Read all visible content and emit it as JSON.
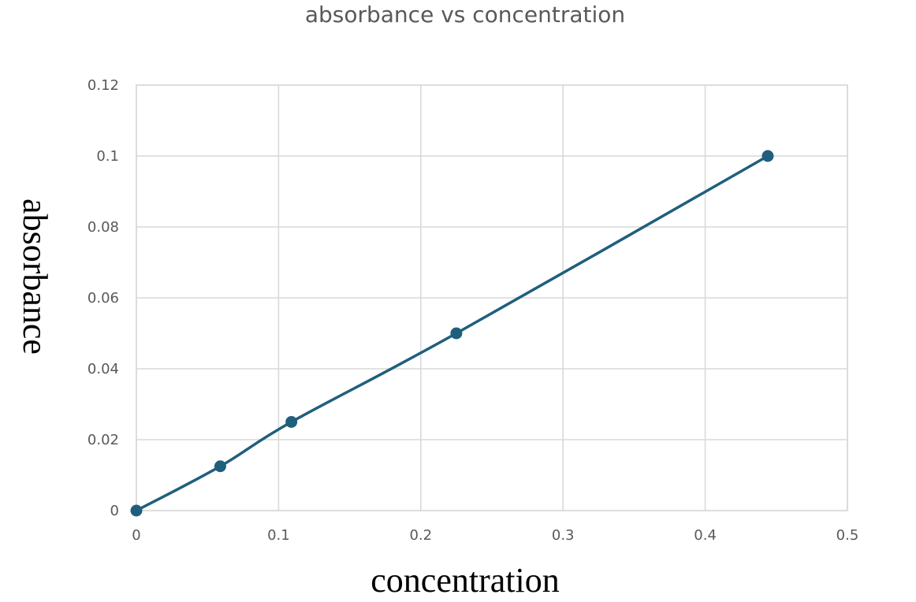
{
  "chart_data": {
    "type": "line",
    "title": "absorbance vs concentration",
    "xlabel": "concentration",
    "ylabel": "absorbance",
    "xlim": [
      0,
      0.5
    ],
    "ylim": [
      0,
      0.12
    ],
    "x_ticks": [
      "0",
      "0.1",
      "0.2",
      "0.3",
      "0.4",
      "0.5"
    ],
    "y_ticks": [
      "0",
      "0.02",
      "0.04",
      "0.06",
      "0.08",
      "0.1",
      "0.12"
    ],
    "grid": true,
    "legend": "none",
    "series": [
      {
        "color": "#1f5f7d",
        "marker": "circle",
        "smooth": true,
        "points": [
          {
            "x": 0,
            "y": 0
          },
          {
            "x": 0.059,
            "y": 0.0125
          },
          {
            "x": 0.109,
            "y": 0.025
          },
          {
            "x": 0.225,
            "y": 0.05
          },
          {
            "x": 0.444,
            "y": 0.1
          }
        ]
      }
    ]
  }
}
